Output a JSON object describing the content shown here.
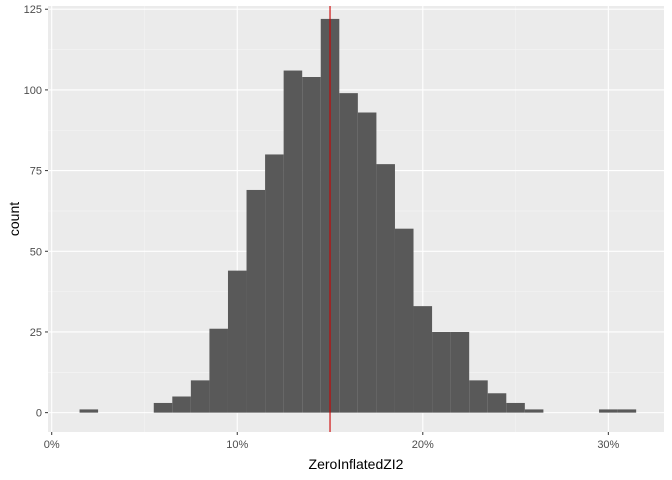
{
  "chart_data": {
    "type": "bar",
    "subtype": "histogram",
    "title": "",
    "xlabel": "ZeroInflatedZI2",
    "ylabel": "count",
    "xlim": [
      -0.002,
      0.33
    ],
    "ylim": [
      -6,
      126
    ],
    "x_ticks": [
      0,
      0.1,
      0.2,
      0.3
    ],
    "x_tick_labels": [
      "0%",
      "10%",
      "20%",
      "30%"
    ],
    "y_ticks": [
      0,
      25,
      50,
      75,
      100,
      125
    ],
    "y_tick_labels": [
      "0",
      "25",
      "50",
      "75",
      "100",
      "125"
    ],
    "bin_width": 0.01,
    "bins": [
      {
        "x0": 0.015,
        "x1": 0.025,
        "count": 1
      },
      {
        "x0": 0.055,
        "x1": 0.065,
        "count": 3
      },
      {
        "x0": 0.065,
        "x1": 0.075,
        "count": 5
      },
      {
        "x0": 0.075,
        "x1": 0.085,
        "count": 10
      },
      {
        "x0": 0.085,
        "x1": 0.095,
        "count": 26
      },
      {
        "x0": 0.095,
        "x1": 0.105,
        "count": 44
      },
      {
        "x0": 0.105,
        "x1": 0.115,
        "count": 69
      },
      {
        "x0": 0.115,
        "x1": 0.125,
        "count": 80
      },
      {
        "x0": 0.125,
        "x1": 0.135,
        "count": 106
      },
      {
        "x0": 0.135,
        "x1": 0.145,
        "count": 104
      },
      {
        "x0": 0.145,
        "x1": 0.155,
        "count": 122
      },
      {
        "x0": 0.155,
        "x1": 0.165,
        "count": 99
      },
      {
        "x0": 0.165,
        "x1": 0.175,
        "count": 93
      },
      {
        "x0": 0.175,
        "x1": 0.185,
        "count": 77
      },
      {
        "x0": 0.185,
        "x1": 0.195,
        "count": 57
      },
      {
        "x0": 0.195,
        "x1": 0.205,
        "count": 33
      },
      {
        "x0": 0.205,
        "x1": 0.215,
        "count": 25
      },
      {
        "x0": 0.215,
        "x1": 0.225,
        "count": 25
      },
      {
        "x0": 0.225,
        "x1": 0.235,
        "count": 10
      },
      {
        "x0": 0.235,
        "x1": 0.245,
        "count": 6
      },
      {
        "x0": 0.245,
        "x1": 0.255,
        "count": 3
      },
      {
        "x0": 0.255,
        "x1": 0.265,
        "count": 1
      },
      {
        "x0": 0.295,
        "x1": 0.305,
        "count": 1
      },
      {
        "x0": 0.305,
        "x1": 0.315,
        "count": 1
      }
    ],
    "reference_line": {
      "x": 0.15,
      "color": "#cc0000"
    },
    "grid": true,
    "legend": "none",
    "colors": {
      "bar_fill": "#595959",
      "panel_background": "#ebebeb",
      "grid_major": "#ffffff",
      "grid_minor": "#f5f5f5"
    }
  }
}
